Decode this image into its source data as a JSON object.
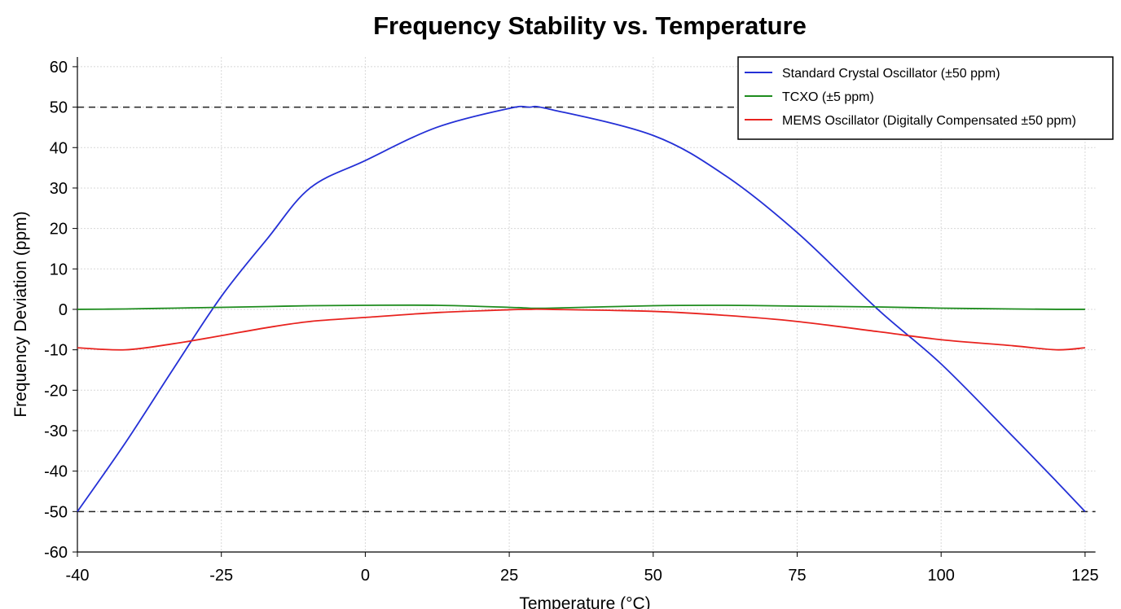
{
  "chart_data": {
    "type": "line",
    "title": "Frequency Stability vs. Temperature",
    "x_label": "Temperature (°C)",
    "y_label": "Frequency Deviation (ppm)",
    "x": [
      -40,
      -35,
      -30,
      -25,
      -17,
      -9.6,
      0,
      12.4,
      25,
      28.5,
      32,
      50,
      62.6,
      75,
      89,
      100,
      112.5,
      120,
      125
    ],
    "series": [
      {
        "name": "Standard Crystal Oscillator (±50 ppm)",
        "color": "#2430d6",
        "values": [
          -50,
          -33,
          -14.7,
          3.2,
          17.5,
          30,
          36.8,
          45,
          49.7,
          50,
          49.5,
          43,
          33,
          19,
          0,
          -13.5,
          -31.5,
          -42.5,
          -50
        ]
      },
      {
        "name": "TCXO (±5 ppm)",
        "color": "#1e8c1e",
        "values": [
          0,
          0.1,
          0.3,
          0.5,
          0.7,
          0.9,
          1,
          1,
          0.5,
          0.3,
          0.3,
          0.9,
          1,
          0.8,
          0.6,
          0.3,
          0.1,
          0,
          0
        ]
      },
      {
        "name": "MEMS Oscillator (Digitally Compensated ±50 ppm)",
        "color": "#e8231f",
        "values": [
          -9.5,
          -10,
          -8.5,
          -6.5,
          -4.5,
          -3,
          -2,
          -0.8,
          -0.1,
          0,
          0,
          -0.5,
          -1.5,
          -3,
          -5.5,
          -7.5,
          -9,
          -10,
          -9.5
        ]
      }
    ],
    "reference_lines": [
      50,
      -50
    ],
    "xlim": [
      -40,
      126.8
    ],
    "ylim": [
      -60,
      62.4
    ],
    "xticks": [
      -40,
      -25,
      0,
      25,
      50,
      75,
      100,
      125
    ],
    "yticks": [
      -60,
      -50,
      -40,
      -30,
      -20,
      -10,
      0,
      10,
      20,
      30,
      40,
      50,
      60
    ],
    "grid": true,
    "legend": "upper-right"
  }
}
